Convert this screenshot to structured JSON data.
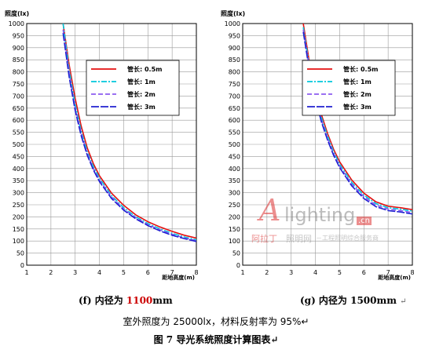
{
  "chart_data": [
    {
      "type": "line",
      "ylabel": "照度(lx)",
      "xlabel": "距地高度(m)",
      "xlim": [
        1,
        8
      ],
      "ylim": [
        0,
        1000
      ],
      "xticks": [
        1,
        2,
        3,
        4,
        5,
        6,
        7,
        8
      ],
      "yticks": [
        0,
        50,
        100,
        150,
        200,
        250,
        300,
        350,
        400,
        450,
        500,
        550,
        600,
        650,
        700,
        750,
        800,
        850,
        900,
        950,
        1000
      ],
      "grid": true,
      "legend_position": "top-right",
      "x": [
        2.5,
        2.75,
        3,
        3.25,
        3.5,
        3.75,
        4,
        4.5,
        5,
        5.5,
        6,
        6.5,
        7,
        7.5,
        8
      ],
      "series": [
        {
          "name": "管长: 0.5m",
          "color": "#e41010",
          "dash": "solid",
          "values": [
            1000,
            830,
            690,
            575,
            485,
            420,
            370,
            298,
            248,
            208,
            180,
            158,
            140,
            124,
            112
          ]
        },
        {
          "name": "管长: 1m",
          "color": "#00c8dc",
          "dash": "dashdot",
          "values": [
            1000,
            810,
            665,
            555,
            470,
            408,
            360,
            288,
            238,
            200,
            172,
            150,
            132,
            117,
            105
          ]
        },
        {
          "name": "管长: 2m",
          "color": "#8c5cf0",
          "dash": "dash",
          "values": [
            975,
            795,
            650,
            545,
            462,
            400,
            352,
            282,
            232,
            196,
            168,
            146,
            128,
            113,
            101
          ]
        },
        {
          "name": "管长: 3m",
          "color": "#2020d0",
          "dash": "longdash",
          "values": [
            960,
            780,
            640,
            535,
            455,
            394,
            346,
            276,
            228,
            192,
            164,
            142,
            124,
            110,
            98
          ]
        }
      ]
    },
    {
      "type": "line",
      "ylabel": "照度(lx)",
      "xlabel": "距地高度(m)",
      "xlim": [
        1,
        8
      ],
      "ylim": [
        0,
        1000
      ],
      "xticks": [
        1,
        2,
        3,
        4,
        5,
        6,
        7,
        8
      ],
      "yticks": [
        0,
        50,
        100,
        150,
        200,
        250,
        300,
        350,
        400,
        450,
        500,
        550,
        600,
        650,
        700,
        750,
        800,
        850,
        900,
        950,
        1000
      ],
      "grid": true,
      "legend_position": "top-right",
      "x": [
        3.5,
        3.75,
        4,
        4.25,
        4.5,
        4.75,
        5,
        5.5,
        6,
        6.5,
        7,
        7.5,
        8
      ],
      "series": [
        {
          "name": "管长: 0.5m",
          "color": "#e41010",
          "dash": "solid",
          "values": [
            1000,
            840,
            720,
            622,
            545,
            480,
            428,
            352,
            298,
            262,
            244,
            238,
            230
          ]
        },
        {
          "name": "管长: 1m",
          "color": "#00c8dc",
          "dash": "dashdot",
          "values": [
            985,
            825,
            705,
            610,
            535,
            470,
            418,
            342,
            290,
            255,
            238,
            232,
            224
          ]
        },
        {
          "name": "管长: 2m",
          "color": "#8c5cf0",
          "dash": "dash",
          "values": [
            975,
            815,
            695,
            600,
            525,
            462,
            410,
            335,
            283,
            248,
            232,
            226,
            218
          ]
        },
        {
          "name": "管长: 3m",
          "color": "#2020d0",
          "dash": "longdash",
          "values": [
            965,
            805,
            688,
            592,
            518,
            455,
            404,
            328,
            276,
            242,
            226,
            220,
            212
          ]
        }
      ]
    }
  ],
  "captions": {
    "left_prefix": "(f) 内径为 ",
    "left_value": "1100",
    "left_suffix": "mm",
    "right": "(g) 内径为 1500mm",
    "mark": "↵"
  },
  "note": "室外照度为 25000lx，材料反射率为 95%↵",
  "figure_title": "图 7 导光系统照度计算图表↵",
  "watermark": {
    "logo_letter": "A",
    "logo_word": "lighting",
    "logo_badge": ".cn",
    "brand": "阿拉丁",
    "site": "照明网",
    "tagline": "－工程照明综合服务商"
  }
}
